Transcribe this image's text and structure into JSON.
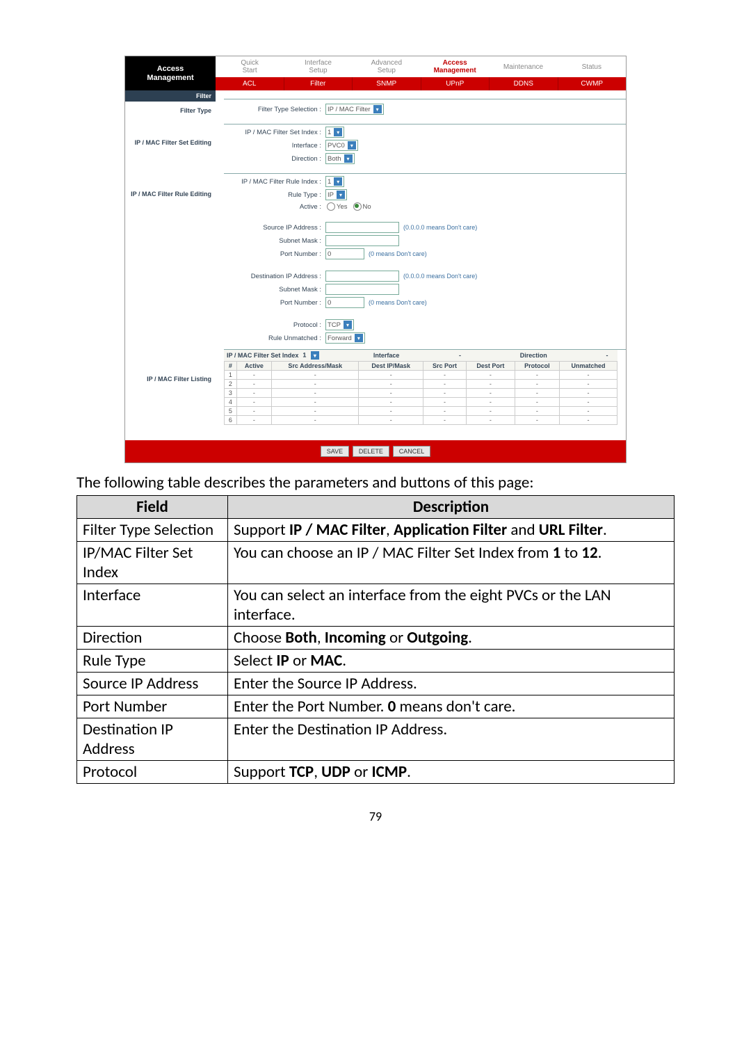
{
  "page_number": "79",
  "caption": "The following table describes the parameters and buttons of this page:",
  "screenshot": {
    "corner_title_line1": "Access",
    "corner_title_line2": "Management",
    "topnav": [
      {
        "label": "Quick Start",
        "active": false
      },
      {
        "label": "Interface Setup",
        "active": false
      },
      {
        "label": "Advanced Setup",
        "active": false
      },
      {
        "label": "Access Management",
        "active": true
      },
      {
        "label": "Maintenance",
        "active": false
      },
      {
        "label": "Status",
        "active": false
      }
    ],
    "subnav": [
      "ACL",
      "Filter",
      "SNMP",
      "UPnP",
      "DDNS",
      "CWMP"
    ],
    "side_labels": {
      "filter": "Filter",
      "filter_type": "Filter Type",
      "set_editing": "IP / MAC Filter Set Editing",
      "rule_editing": "IP / MAC Filter Rule Editing",
      "listing": "IP / MAC Filter Listing"
    },
    "form": {
      "filter_type_selection": {
        "label": "Filter Type Selection :",
        "value": "IP / MAC Filter"
      },
      "set_index": {
        "label": "IP / MAC Filter Set Index :",
        "value": "1"
      },
      "interface": {
        "label": "Interface :",
        "value": "PVC0"
      },
      "direction": {
        "label": "Direction :",
        "value": "Both"
      },
      "rule_index": {
        "label": "IP / MAC Filter Rule Index :",
        "value": "1"
      },
      "rule_type": {
        "label": "Rule Type :",
        "value": "IP"
      },
      "active": {
        "label": "Active :",
        "options": [
          "Yes",
          "No"
        ],
        "selected": "No"
      },
      "src_ip": {
        "label": "Source IP Address :",
        "value": "",
        "hint": "(0.0.0.0 means Don't care)"
      },
      "src_mask": {
        "label": "Subnet Mask :",
        "value": ""
      },
      "src_port": {
        "label": "Port Number :",
        "value": "0",
        "hint": "(0 means Don't care)"
      },
      "dst_ip": {
        "label": "Destination IP Address :",
        "value": "",
        "hint": "(0.0.0.0 means Don't care)"
      },
      "dst_mask": {
        "label": "Subnet Mask :",
        "value": ""
      },
      "dst_port": {
        "label": "Port Number :",
        "value": "0",
        "hint": "(0 means Don't care)"
      },
      "protocol": {
        "label": "Protocol :",
        "value": "TCP"
      },
      "rule_unmatched": {
        "label": "Rule Unmatched :",
        "value": "Forward"
      }
    },
    "listing": {
      "head_left": "IP / MAC Filter Set Index",
      "head_sel": "1",
      "head_mid1": "Interface",
      "head_mid1_val": "-",
      "head_mid2": "Direction",
      "head_mid2_val": "-",
      "columns": [
        "#",
        "Active",
        "Src Address/Mask",
        "Dest IP/Mask",
        "Src Port",
        "Dest Port",
        "Protocol",
        "Unmatched"
      ],
      "rows": [
        [
          "1",
          "-",
          "-",
          "-",
          "-",
          "-",
          "-",
          "-"
        ],
        [
          "2",
          "-",
          "-",
          "-",
          "-",
          "-",
          "-",
          "-"
        ],
        [
          "3",
          "-",
          "-",
          "-",
          "-",
          "-",
          "-",
          "-"
        ],
        [
          "4",
          "-",
          "-",
          "-",
          "-",
          "-",
          "-",
          "-"
        ],
        [
          "5",
          "-",
          "-",
          "-",
          "-",
          "-",
          "-",
          "-"
        ],
        [
          "6",
          "-",
          "-",
          "-",
          "-",
          "-",
          "-",
          "-"
        ]
      ]
    },
    "buttons": {
      "save": "SAVE",
      "delete": "DELETE",
      "cancel": "CANCEL"
    }
  },
  "doc_table": {
    "header": {
      "field": "Field",
      "description": "Description"
    },
    "rows": [
      {
        "field": "Filter Type Selection",
        "description_html": "Support <b>IP / MAC Filter</b>, <b>Application Filter</b> and <b>URL Filter</b>."
      },
      {
        "field": "IP/MAC Filter Set Index",
        "description_html": "You can choose an IP / MAC Filter Set Index from <b>1</b> to <b>12</b>."
      },
      {
        "field": "Interface",
        "description_html": "You can select an interface from the eight PVCs or the LAN interface."
      },
      {
        "field": "Direction",
        "description_html": "Choose <b>Both</b>, <b>Incoming</b> or <b>Outgoing</b>."
      },
      {
        "field": "Rule Type",
        "description_html": "Select <b>IP</b> or <b>MAC</b>."
      },
      {
        "field": "Source IP Address",
        "description_html": "Enter the Source IP Address."
      },
      {
        "field": "Port Number",
        "description_html": "Enter the Port Number. <b>0</b> means don't care."
      },
      {
        "field": "Destination IP Address",
        "description_html": "Enter the Destination IP Address."
      },
      {
        "field": "Protocol",
        "description_html": "Support <b>TCP</b>, <b>UDP</b> or <b>ICMP</b>."
      }
    ]
  },
  "colors": {
    "red": "#cc0000",
    "darkblue": "#2d4052",
    "grey_header": "#d9d9d9"
  }
}
